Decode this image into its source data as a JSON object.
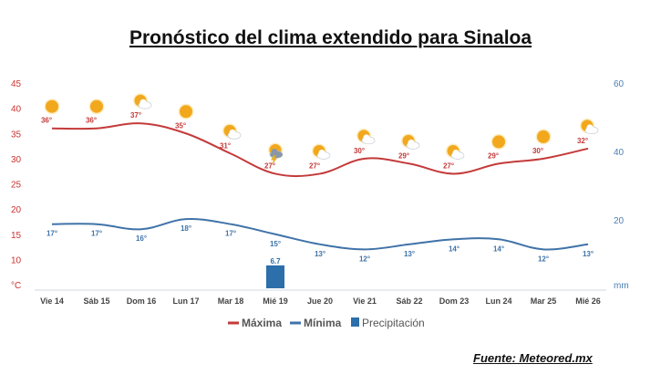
{
  "title": "Pronóstico del clima extendido para Sinaloa",
  "source": "Fuente: Meteored.mx",
  "colors": {
    "max": "#c43a3a",
    "min": "#3f73a8",
    "precip": "#2c6faa",
    "axis_left": "#cc3333",
    "axis_right": "#4a7fb5"
  },
  "chart_data": {
    "type": "line",
    "categories": [
      "Vie 14",
      "Sáb 15",
      "Dom 16",
      "Lun 17",
      "Mar 18",
      "Mié 19",
      "Jue 20",
      "Vie 21",
      "Sáb 22",
      "Dom 23",
      "Lun 24",
      "Mar 25",
      "Mié 26"
    ],
    "series": [
      {
        "name": "Máxima",
        "values": [
          36,
          36,
          37,
          35,
          31,
          27,
          27,
          30,
          29,
          27,
          29,
          30,
          32
        ],
        "labels": [
          "36°",
          "36°",
          "37°",
          "35°",
          "31°",
          "27°",
          "27°",
          "30°",
          "29°",
          "27°",
          "29°",
          "30°",
          "32°"
        ]
      },
      {
        "name": "Mínima",
        "values": [
          17,
          17,
          16,
          18,
          17,
          15,
          13,
          12,
          13,
          14,
          14,
          12,
          13
        ],
        "labels": [
          "17°",
          "17°",
          "16°",
          "18°",
          "17°",
          "15°",
          "13°",
          "12°",
          "13°",
          "14°",
          "14°",
          "12°",
          "13°"
        ]
      },
      {
        "name": "Precipitación",
        "values": [
          0,
          0,
          0,
          0,
          0,
          6.7,
          0,
          0,
          0,
          0,
          0,
          0,
          0
        ],
        "label": "6.7"
      }
    ],
    "icons": [
      "sun-icon",
      "sun-icon",
      "partly-cloudy-icon",
      "sun-icon",
      "partly-cloudy-icon",
      "storm-icon",
      "partly-cloudy-icon",
      "partly-cloudy-icon",
      "partly-cloudy-icon",
      "partly-cloudy-icon",
      "sun-icon",
      "sun-icon",
      "partly-cloudy-icon"
    ],
    "y_left": {
      "ticks": [
        45,
        40,
        35,
        30,
        25,
        20,
        15,
        10
      ],
      "unit": "°C",
      "ylim": [
        5,
        45
      ]
    },
    "y_right": {
      "ticks": [
        60,
        40,
        20
      ],
      "unit": "mm",
      "ylim": [
        0,
        60
      ]
    },
    "legend": [
      "Máxima",
      "Mínima",
      "Precipitación"
    ],
    "legend_position": "bottom-center",
    "grid": false
  }
}
